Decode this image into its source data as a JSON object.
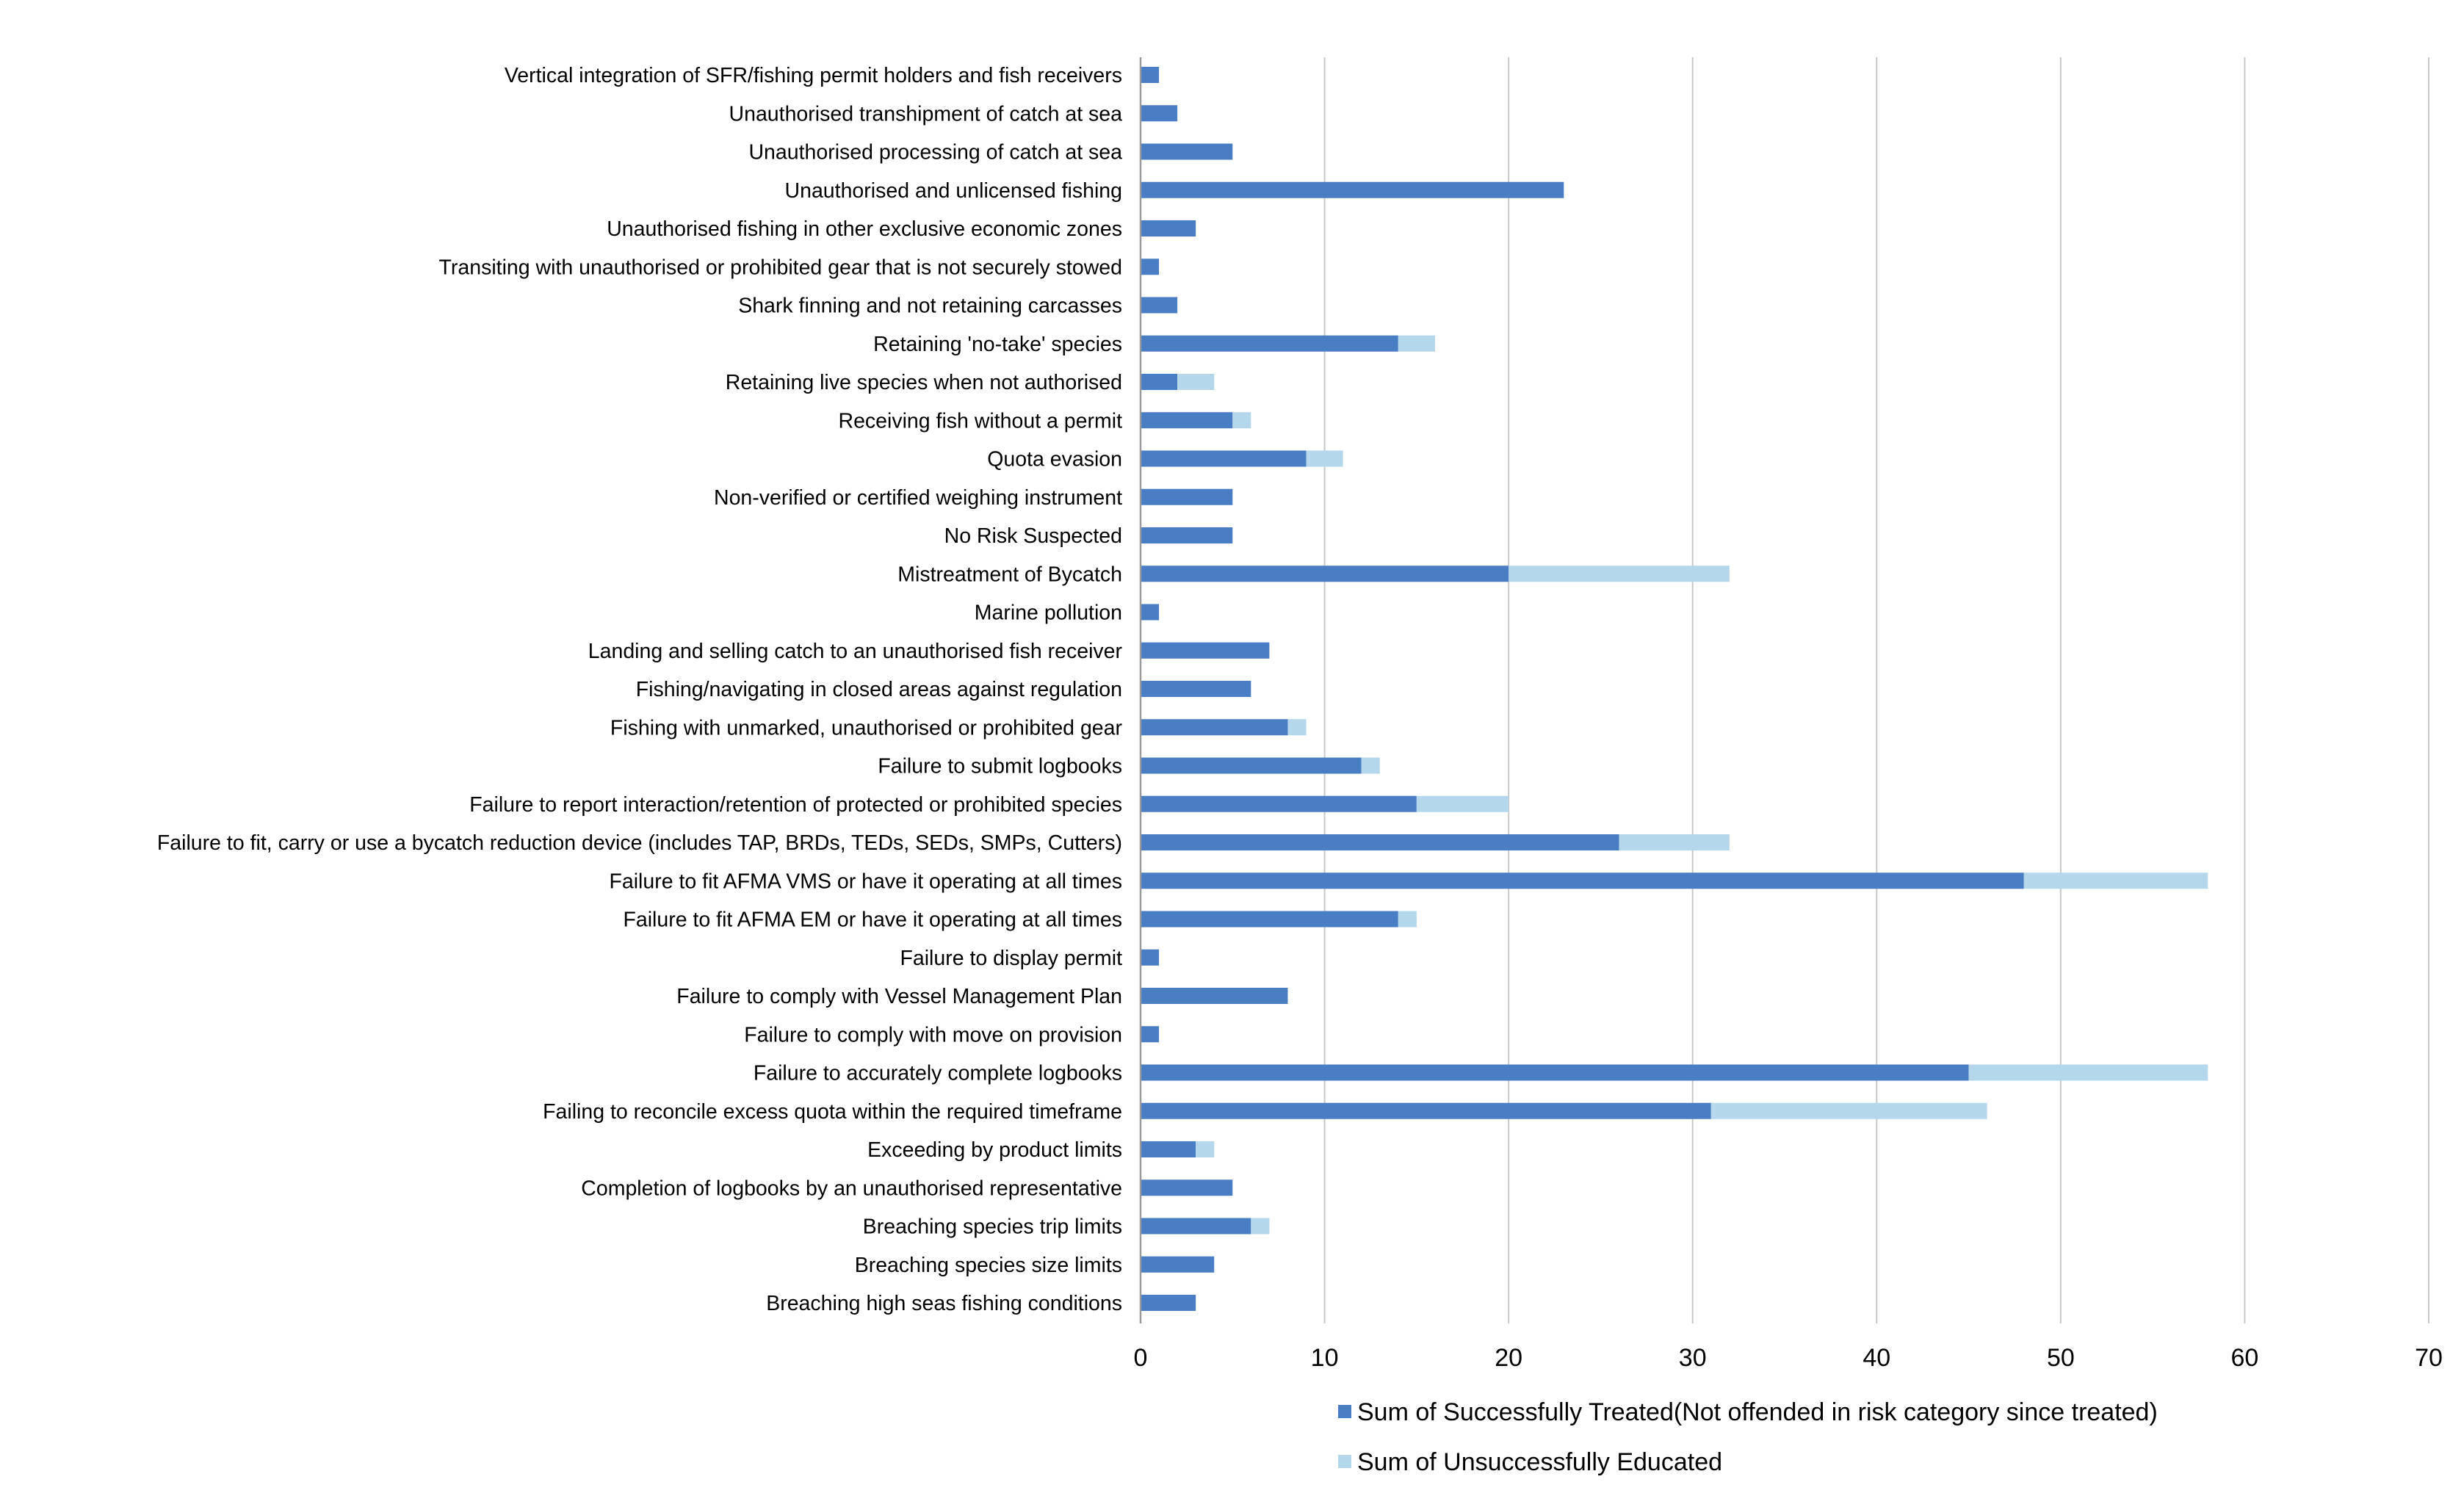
{
  "chart_data": {
    "type": "bar",
    "orientation": "horizontal",
    "stacked": true,
    "title": "",
    "xlabel": "",
    "ylabel": "",
    "xlim": [
      0,
      70
    ],
    "xticks": [
      0,
      10,
      20,
      30,
      40,
      50,
      60,
      70
    ],
    "grid": true,
    "legend_position": "bottom",
    "categories": [
      "Vertical integration of SFR/fishing permit holders and fish receivers",
      "Unauthorised transhipment of catch at sea",
      "Unauthorised processing of catch at sea",
      "Unauthorised and unlicensed fishing",
      "Unauthorised  fishing in other exclusive economic zones",
      "Transiting with unauthorised or prohibited gear that is not securely stowed",
      "Shark finning and not retaining carcasses",
      "Retaining 'no-take' species",
      "Retaining live species when not authorised",
      "Receiving fish without a permit",
      "Quota evasion",
      "Non-verified or certified weighing instrument",
      "No Risk Suspected",
      "Mistreatment of Bycatch",
      "Marine pollution",
      "Landing and selling catch to an unauthorised fish receiver",
      "Fishing/navigating in closed areas against regulation",
      "Fishing with unmarked, unauthorised or prohibited gear",
      "Failure to submit logbooks",
      "Failure to report interaction/retention of protected or prohibited species",
      "Failure to fit, carry or use a bycatch reduction device (includes TAP, BRDs, TEDs, SEDs, SMPs, Cutters)",
      "Failure to fit AFMA VMS or have it operating at all times",
      "Failure to fit AFMA EM or have it operating at all times",
      "Failure to display permit",
      "Failure to comply with Vessel Management Plan",
      "Failure to comply with move on provision",
      "Failure to accurately complete logbooks",
      "Failing to reconcile excess quota within the required timeframe",
      "Exceeding by product limits",
      "Completion of logbooks by an unauthorised representative",
      "Breaching species trip limits",
      "Breaching species size limits",
      "Breaching high seas fishing conditions"
    ],
    "series": [
      {
        "name": "Sum of Successfully Treated(Not offended in risk category since treated)",
        "color": "#4a7ec4",
        "values": [
          1,
          2,
          5,
          23,
          3,
          1,
          2,
          14,
          2,
          5,
          9,
          5,
          5,
          20,
          1,
          7,
          6,
          8,
          12,
          15,
          26,
          48,
          14,
          1,
          8,
          1,
          45,
          31,
          3,
          5,
          6,
          4,
          3
        ]
      },
      {
        "name": "Sum of Unsuccessfully Educated",
        "color": "#b4d7ec",
        "values": [
          0,
          0,
          0,
          0,
          0,
          0,
          0,
          2,
          2,
          1,
          2,
          0,
          0,
          12,
          0,
          0,
          0,
          1,
          1,
          5,
          6,
          10,
          1,
          0,
          0,
          0,
          13,
          15,
          1,
          0,
          1,
          0,
          0
        ]
      }
    ]
  }
}
